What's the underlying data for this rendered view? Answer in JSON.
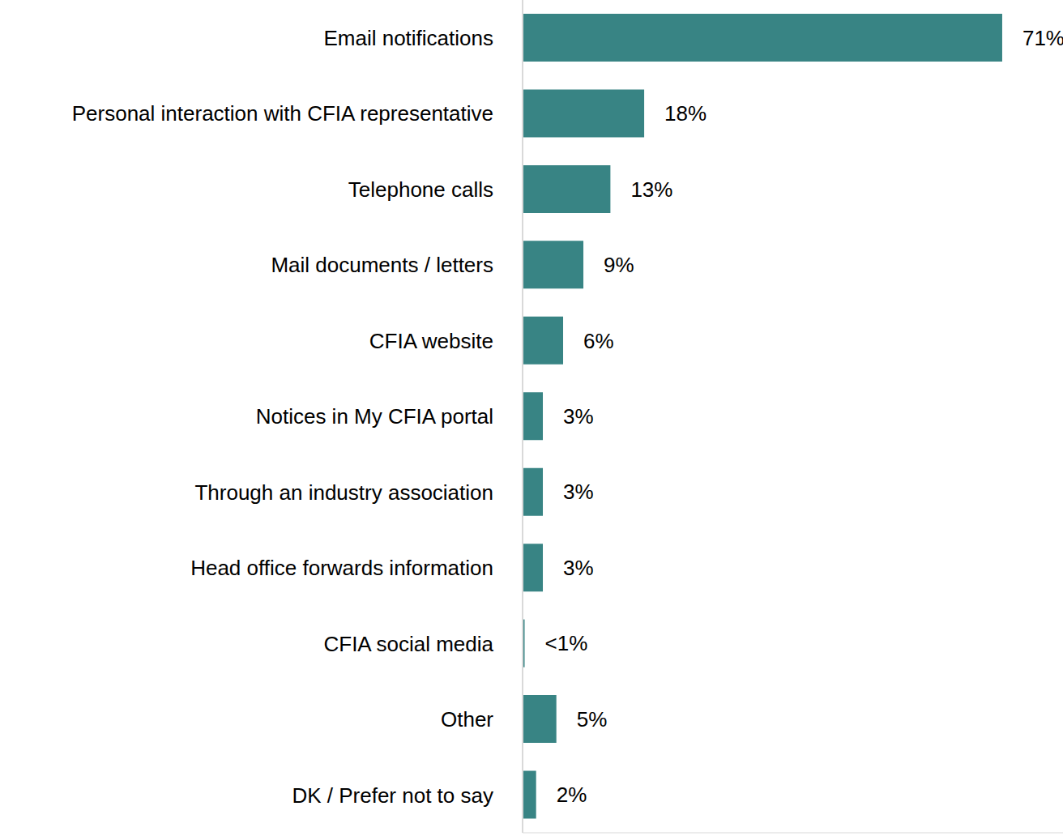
{
  "chart_data": {
    "type": "bar",
    "orientation": "horizontal",
    "categories": [
      "Email notifications",
      "Personal interaction with CFIA representative",
      "Telephone calls",
      "Mail documents / letters",
      "CFIA website",
      "Notices in My CFIA portal",
      "Through an industry association",
      "Head office forwards information",
      "CFIA social media",
      "Other",
      "DK / Prefer not to say"
    ],
    "values": [
      71,
      18,
      13,
      9,
      6,
      3,
      3,
      3,
      0.3,
      5,
      2
    ],
    "value_labels": [
      "71%",
      "18%",
      "13%",
      "9%",
      "6%",
      "3%",
      "3%",
      "3%",
      "<1%",
      "5%",
      "2%"
    ],
    "color": "#388484",
    "xlim": [
      0,
      80
    ],
    "data_labels": true,
    "tick_labels": "y",
    "grid": false
  }
}
